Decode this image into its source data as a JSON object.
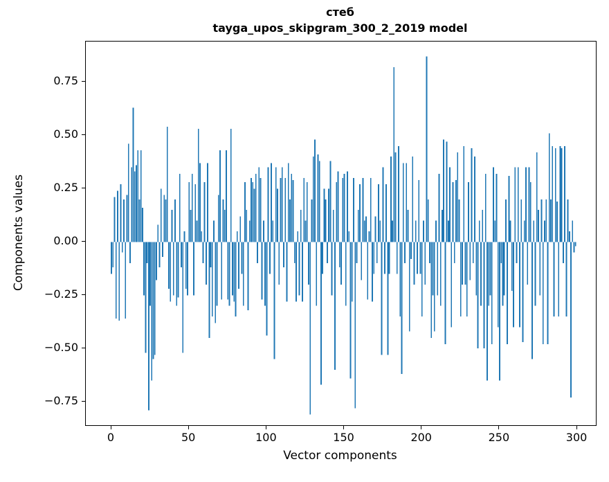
{
  "chart_data": {
    "type": "bar",
    "title_line1": "стеб",
    "title_line2": "tayga_upos_skipgram_300_2_2019 model",
    "xlabel": "Vector components",
    "ylabel": "Components values",
    "bar_color": "#1f77b4",
    "legend": "none",
    "grid": false,
    "xlim": [
      -16.5,
      312
    ],
    "ylim": [
      -0.86,
      0.94
    ],
    "xticks": [
      0,
      50,
      100,
      150,
      200,
      250,
      300
    ],
    "yticks": [
      0.75,
      0.5,
      0.25,
      0.0,
      -0.25,
      -0.5,
      -0.75
    ],
    "x_is_index": "bar i is vector component index i, 0..299",
    "values": [
      -0.15,
      -0.12,
      0.21,
      -0.36,
      0.24,
      -0.37,
      0.27,
      -0.05,
      0.2,
      -0.36,
      0.22,
      0.46,
      -0.1,
      0.35,
      0.63,
      0.33,
      0.36,
      0.43,
      0.2,
      0.43,
      0.16,
      -0.25,
      -0.52,
      -0.1,
      -0.79,
      -0.3,
      -0.65,
      -0.55,
      -0.53,
      -0.18,
      0.08,
      -0.12,
      0.25,
      -0.07,
      0.22,
      0.2,
      0.54,
      -0.22,
      -0.28,
      0.15,
      -0.25,
      0.2,
      -0.3,
      -0.26,
      0.32,
      -0.12,
      -0.52,
      0.05,
      -0.22,
      -0.25,
      0.28,
      0.15,
      0.32,
      -0.25,
      0.27,
      0.1,
      0.53,
      0.37,
      0.05,
      -0.1,
      0.28,
      -0.2,
      0.37,
      -0.45,
      -0.12,
      -0.35,
      0.1,
      -0.38,
      -0.3,
      0.22,
      0.43,
      -0.27,
      0.2,
      0.15,
      0.43,
      -0.27,
      -0.3,
      0.53,
      -0.25,
      -0.28,
      -0.35,
      0.05,
      -0.22,
      0.12,
      -0.15,
      -0.3,
      0.28,
      0.15,
      -0.32,
      0.1,
      0.3,
      0.28,
      0.25,
      0.32,
      -0.1,
      0.35,
      0.3,
      -0.27,
      0.1,
      -0.3,
      -0.44,
      0.35,
      -0.15,
      0.37,
      0.1,
      -0.55,
      0.35,
      0.25,
      -0.2,
      0.3,
      0.35,
      -0.12,
      0.3,
      -0.28,
      0.37,
      0.2,
      0.32,
      0.29,
      -0.1,
      -0.28,
      0.05,
      -0.25,
      0.15,
      -0.28,
      0.3,
      0.1,
      0.28,
      -0.2,
      -0.81,
      0.2,
      0.4,
      0.48,
      -0.3,
      0.41,
      0.38,
      -0.67,
      -0.15,
      0.25,
      0.2,
      -0.1,
      0.25,
      0.38,
      -0.25,
      0.15,
      -0.6,
      0.28,
      0.33,
      -0.12,
      -0.2,
      0.3,
      0.32,
      -0.3,
      0.33,
      0.05,
      -0.64,
      -0.28,
      0.3,
      -0.78,
      -0.1,
      0.15,
      0.27,
      -0.18,
      0.3,
      0.1,
      0.12,
      -0.27,
      0.05,
      0.3,
      -0.28,
      -0.15,
      0.12,
      -0.1,
      0.27,
      0.1,
      -0.53,
      0.35,
      -0.15,
      0.27,
      -0.53,
      -0.15,
      0.4,
      0.1,
      0.82,
      0.42,
      -0.15,
      0.45,
      -0.35,
      -0.62,
      0.37,
      -0.1,
      0.37,
      0.15,
      -0.42,
      -0.08,
      0.4,
      -0.2,
      0.1,
      -0.15,
      0.29,
      -0.15,
      -0.35,
      0.1,
      -0.2,
      0.87,
      0.2,
      -0.1,
      -0.45,
      -0.25,
      -0.42,
      0.1,
      -0.25,
      0.32,
      -0.3,
      0.15,
      0.48,
      -0.48,
      0.47,
      0.1,
      0.35,
      -0.4,
      0.28,
      -0.1,
      0.29,
      0.42,
      0.2,
      -0.35,
      -0.2,
      0.45,
      -0.2,
      -0.35,
      0.28,
      -0.18,
      0.44,
      -0.1,
      0.4,
      -0.25,
      -0.5,
      0.1,
      -0.3,
      0.15,
      -0.5,
      0.32,
      -0.65,
      -0.3,
      -0.25,
      -0.48,
      0.35,
      0.1,
      0.32,
      -0.4,
      -0.65,
      -0.1,
      -0.3,
      -0.25,
      0.2,
      -0.48,
      0.31,
      0.1,
      -0.23,
      -0.4,
      0.35,
      -0.1,
      0.35,
      -0.4,
      0.2,
      -0.47,
      0.1,
      0.35,
      -0.2,
      0.35,
      0.28,
      -0.55,
      0.1,
      -0.3,
      0.42,
      0.15,
      -0.25,
      0.2,
      -0.48,
      0.1,
      0.2,
      -0.48,
      0.51,
      0.2,
      0.45,
      -0.35,
      0.44,
      0.19,
      -0.35,
      0.45,
      0.44,
      -0.1,
      0.45,
      -0.35,
      0.2,
      0.05,
      -0.73,
      0.1,
      -0.05,
      -0.02
    ]
  }
}
